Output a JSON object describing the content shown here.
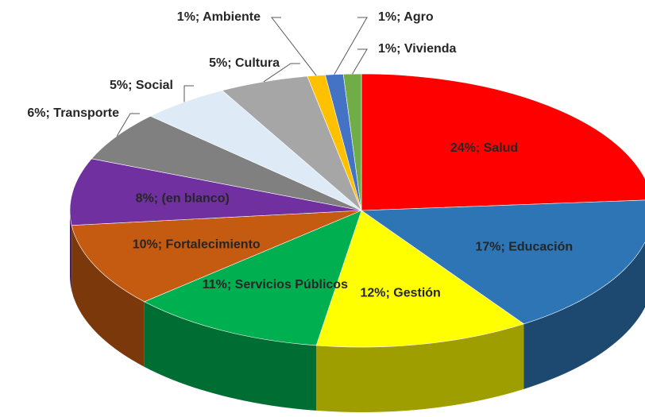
{
  "chart_data": {
    "type": "pie",
    "categories": [
      "Salud",
      "Educación",
      "Gestión",
      "Servicios Públicos",
      "Fortalecimiento",
      "(en blanco)",
      "Transporte",
      "Social",
      "Cultura",
      "Ambiente",
      "Agro",
      "Vivienda"
    ],
    "values": [
      24,
      17,
      12,
      11,
      10,
      8,
      6,
      5,
      5,
      1,
      1,
      1
    ],
    "value_labels": [
      "24%; Salud",
      "17%; Educación",
      "12%; Gestión",
      "11%; Servicios Públicos",
      "10%; Fortalecimiento",
      "8%; (en blanco)",
      "6%; Transporte",
      "5%; Social",
      "5%; Cultura",
      "1%; Ambiente",
      "1%; Agro",
      "1%; Vivienda"
    ],
    "colors": [
      "#ff0000",
      "#2e75b6",
      "#ffff00",
      "#00b050",
      "#c55a11",
      "#7030a0",
      "#808080",
      "#deebf7",
      "#a6a6a6",
      "#ffc000",
      "#4472c4",
      "#70ad47"
    ],
    "three_d": true
  }
}
